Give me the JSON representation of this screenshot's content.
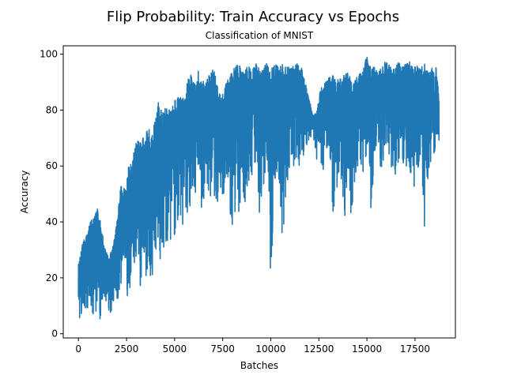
{
  "chart_data": {
    "type": "line",
    "title": "Flip Probability: Train Accuracy vs Epochs",
    "subtitle": "Classification of MNIST",
    "xlabel": "Batches",
    "ylabel": "Accuracy",
    "xlim": [
      -790,
      19600
    ],
    "ylim": [
      -1.5,
      103
    ],
    "xticks": [
      0,
      2500,
      5000,
      7500,
      10000,
      12500,
      15000,
      17500
    ],
    "xtick_labels": [
      "0",
      "2500",
      "5000",
      "7500",
      "10000",
      "12500",
      "15000",
      "17500"
    ],
    "yticks": [
      0,
      20,
      40,
      60,
      80,
      100
    ],
    "ytick_labels": [
      "0",
      "20",
      "40",
      "60",
      "80",
      "100"
    ],
    "grid": false,
    "line_color": "#1f77b4",
    "series": [
      {
        "name": "train accuracy",
        "note": "approximate noisy trace: x = batch index, y_low/y_high = per-bin oscillation range",
        "x": [
          0,
          200,
          400,
          600,
          800,
          1000,
          1200,
          1400,
          1600,
          1800,
          2000,
          2200,
          2400,
          2600,
          2800,
          3000,
          3200,
          3400,
          3600,
          3800,
          4000,
          4200,
          4400,
          4600,
          4800,
          5000,
          5200,
          5400,
          5600,
          5800,
          6000,
          6200,
          6400,
          6600,
          6800,
          7000,
          7200,
          7400,
          7600,
          7800,
          8000,
          8200,
          8400,
          8600,
          8800,
          9000,
          9200,
          9400,
          9600,
          9800,
          10000,
          10200,
          10400,
          10600,
          10800,
          11000,
          11200,
          11400,
          11600,
          11800,
          12000,
          12200,
          12400,
          12600,
          12800,
          13000,
          13200,
          13400,
          13600,
          13800,
          14000,
          14200,
          14400,
          14600,
          14800,
          15000,
          15200,
          15400,
          15600,
          15800,
          16000,
          16200,
          16400,
          16600,
          16800,
          17000,
          17200,
          17400,
          17600,
          17800,
          18000,
          18200,
          18400,
          18600,
          18750
        ],
        "y_low": [
          3,
          8,
          8,
          10,
          5,
          8,
          3,
          12,
          6,
          10,
          8,
          15,
          18,
          12,
          20,
          25,
          10,
          15,
          22,
          18,
          30,
          25,
          28,
          30,
          32,
          35,
          40,
          38,
          42,
          45,
          50,
          48,
          42,
          50,
          46,
          52,
          44,
          48,
          50,
          55,
          19,
          48,
          40,
          45,
          52,
          55,
          58,
          42,
          50,
          52,
          17,
          55,
          58,
          30,
          50,
          58,
          60,
          58,
          62,
          65,
          70,
          70,
          62,
          62,
          55,
          60,
          42,
          48,
          60,
          45,
          34,
          40,
          55,
          62,
          58,
          65,
          42,
          55,
          60,
          58,
          66,
          62,
          55,
          60,
          62,
          58,
          60,
          47,
          58,
          62,
          33,
          58,
          60,
          62,
          60
        ],
        "y_high": [
          25,
          33,
          35,
          40,
          42,
          45,
          38,
          30,
          28,
          32,
          40,
          53,
          52,
          60,
          62,
          70,
          68,
          72,
          75,
          70,
          78,
          84,
          80,
          82,
          80,
          84,
          85,
          84,
          88,
          94,
          90,
          95,
          91,
          91,
          94,
          96,
          90,
          85,
          88,
          92,
          95,
          97,
          96,
          94,
          96,
          95,
          97,
          96,
          95,
          97,
          95,
          97,
          96,
          97,
          95,
          96,
          96,
          97,
          95,
          90,
          84,
          78,
          80,
          88,
          90,
          92,
          93,
          90,
          92,
          93,
          94,
          92,
          91,
          93,
          95,
          100,
          95,
          96,
          94,
          96,
          98,
          96,
          95,
          98,
          96,
          97,
          98,
          97,
          96,
          95,
          97,
          96,
          95,
          96,
          84
        ]
      }
    ]
  }
}
